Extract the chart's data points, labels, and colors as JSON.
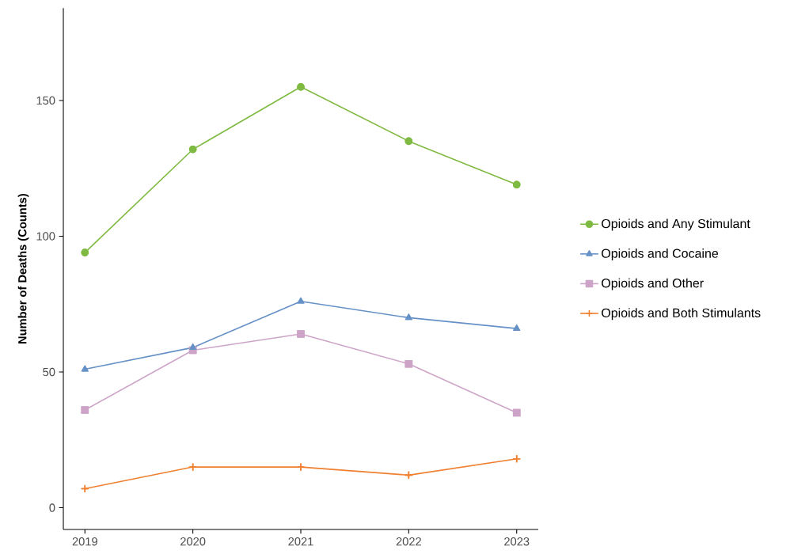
{
  "chart_data": {
    "type": "line",
    "ylabel": "Number of Deaths (Counts)",
    "categories": [
      "2019",
      "2020",
      "2021",
      "2022",
      "2023"
    ],
    "series": [
      {
        "name": "Opioids and Any Stimulant",
        "color": "#7fba42",
        "marker": "circle",
        "values": [
          94,
          132,
          155,
          135,
          119
        ]
      },
      {
        "name": "Opioids and Cocaine",
        "color": "#6591c7",
        "marker": "triangle",
        "values": [
          51,
          59,
          76,
          70,
          66
        ]
      },
      {
        "name": "Opioids and Other",
        "color": "#cda4c8",
        "marker": "square",
        "values": [
          36,
          58,
          64,
          53,
          35
        ]
      },
      {
        "name": "Opioids and Both Stimulants",
        "color": "#f08030",
        "marker": "cross",
        "values": [
          7,
          15,
          15,
          12,
          18
        ]
      }
    ],
    "ylim": [
      -8,
      184
    ],
    "yticks": [
      0,
      50,
      100,
      150
    ],
    "grid": false,
    "legend": "right",
    "line_style": "solid"
  }
}
